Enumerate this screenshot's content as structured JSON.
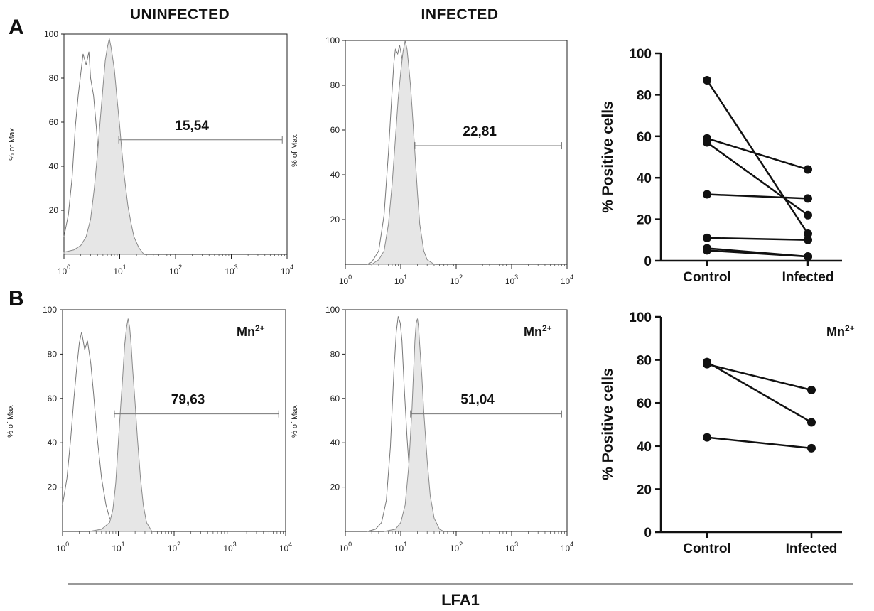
{
  "titles": {
    "uninfected": "UNINFECTED",
    "infected": "INFECTED",
    "panel_a": "A",
    "panel_b": "B",
    "x_axis": "LFA1",
    "mn_base": "Mn",
    "mn_sup": "2+"
  },
  "chart_data": [
    {
      "id": "A-uninfected",
      "type": "area",
      "panel": "A",
      "condition": "UNINFECTED",
      "ylabel": "% of Max",
      "ylim": [
        0,
        100
      ],
      "yticks": [
        20,
        40,
        60,
        80,
        100
      ],
      "xscale": "log",
      "xlim": [
        1,
        10000
      ],
      "xtick_base": "10",
      "xtick_exps": [
        "0",
        "1",
        "2",
        "3",
        "4"
      ],
      "gate": {
        "label": "15,54",
        "from": 9.6,
        "to": 8200,
        "y": 52
      },
      "series": [
        {
          "style": "outline",
          "points": [
            [
              1,
              8
            ],
            [
              1.2,
              18
            ],
            [
              1.4,
              35
            ],
            [
              1.6,
              58
            ],
            [
              1.8,
              72
            ],
            [
              2.0,
              82
            ],
            [
              2.2,
              91
            ],
            [
              2.5,
              86
            ],
            [
              2.8,
              92
            ],
            [
              3.0,
              80
            ],
            [
              3.4,
              72
            ],
            [
              3.8,
              58
            ],
            [
              4.3,
              40
            ],
            [
              5,
              26
            ],
            [
              6,
              14
            ],
            [
              7,
              7
            ],
            [
              8.5,
              3
            ],
            [
              10,
              1
            ],
            [
              12,
              0
            ]
          ]
        },
        {
          "style": "filled",
          "points": [
            [
              1,
              1
            ],
            [
              1.5,
              2
            ],
            [
              2,
              4
            ],
            [
              2.5,
              8
            ],
            [
              3,
              16
            ],
            [
              3.5,
              30
            ],
            [
              4,
              46
            ],
            [
              4.5,
              62
            ],
            [
              5,
              76
            ],
            [
              5.5,
              88
            ],
            [
              6,
              94
            ],
            [
              6.5,
              98
            ],
            [
              7,
              94
            ],
            [
              8,
              84
            ],
            [
              9,
              70
            ],
            [
              10,
              58
            ],
            [
              11,
              46
            ],
            [
              12,
              36
            ],
            [
              14,
              22
            ],
            [
              16,
              14
            ],
            [
              18,
              8
            ],
            [
              22,
              3
            ],
            [
              27,
              0
            ]
          ]
        }
      ]
    },
    {
      "id": "A-infected",
      "type": "area",
      "panel": "A",
      "condition": "INFECTED",
      "ylabel": "% of Max",
      "ylim": [
        0,
        100
      ],
      "yticks": [
        20,
        40,
        60,
        80,
        100
      ],
      "xscale": "log",
      "xlim": [
        1,
        10000
      ],
      "xtick_base": "10",
      "xtick_exps": [
        "0",
        "1",
        "2",
        "3",
        "4"
      ],
      "gate": {
        "label": "22,81",
        "from": 18,
        "to": 8000,
        "y": 53
      },
      "series": [
        {
          "style": "outline",
          "points": [
            [
              2.5,
              0
            ],
            [
              3,
              1
            ],
            [
              4,
              6
            ],
            [
              5,
              22
            ],
            [
              6,
              50
            ],
            [
              7,
              78
            ],
            [
              7.5,
              90
            ],
            [
              8,
              96
            ],
            [
              8.8,
              94
            ],
            [
              9.5,
              98
            ],
            [
              10.5,
              92
            ],
            [
              11,
              86
            ],
            [
              12,
              70
            ],
            [
              13,
              52
            ],
            [
              15,
              28
            ],
            [
              17,
              12
            ],
            [
              20,
              4
            ],
            [
              25,
              1
            ],
            [
              30,
              0
            ]
          ]
        },
        {
          "style": "filled",
          "points": [
            [
              3,
              0
            ],
            [
              4,
              2
            ],
            [
              5,
              6
            ],
            [
              6,
              18
            ],
            [
              7,
              36
            ],
            [
              8,
              56
            ],
            [
              9,
              74
            ],
            [
              10,
              86
            ],
            [
              11,
              95
            ],
            [
              12,
              100
            ],
            [
              13,
              96
            ],
            [
              14,
              88
            ],
            [
              15,
              80
            ],
            [
              16,
              70
            ],
            [
              18,
              50
            ],
            [
              20,
              32
            ],
            [
              22,
              18
            ],
            [
              26,
              6
            ],
            [
              30,
              2
            ],
            [
              40,
              0
            ]
          ]
        }
      ]
    },
    {
      "id": "B-uninfected",
      "type": "area",
      "panel": "B",
      "condition": "UNINFECTED",
      "annotation": "Mn2+",
      "ylabel": "% of Max",
      "ylim": [
        0,
        100
      ],
      "yticks": [
        20,
        40,
        60,
        80,
        100
      ],
      "xscale": "log",
      "xlim": [
        1,
        10000
      ],
      "xtick_base": "10",
      "xtick_exps": [
        "0",
        "1",
        "2",
        "3",
        "4"
      ],
      "gate": {
        "label": "79,63",
        "from": 8.5,
        "to": 7500,
        "y": 53
      },
      "series": [
        {
          "style": "outline",
          "points": [
            [
              1,
              12
            ],
            [
              1.2,
              24
            ],
            [
              1.4,
              42
            ],
            [
              1.6,
              60
            ],
            [
              1.8,
              74
            ],
            [
              2.0,
              85
            ],
            [
              2.2,
              90
            ],
            [
              2.5,
              82
            ],
            [
              2.8,
              86
            ],
            [
              3.2,
              76
            ],
            [
              3.6,
              62
            ],
            [
              4.2,
              42
            ],
            [
              5,
              24
            ],
            [
              6,
              12
            ],
            [
              7,
              6
            ],
            [
              8.5,
              2
            ],
            [
              10,
              1
            ],
            [
              13,
              0
            ]
          ]
        },
        {
          "style": "filled",
          "points": [
            [
              3,
              0
            ],
            [
              5,
              1
            ],
            [
              7,
              4
            ],
            [
              8,
              10
            ],
            [
              9,
              22
            ],
            [
              10,
              40
            ],
            [
              11,
              56
            ],
            [
              12,
              70
            ],
            [
              13,
              84
            ],
            [
              14,
              92
            ],
            [
              15,
              96
            ],
            [
              16,
              92
            ],
            [
              17,
              84
            ],
            [
              18,
              74
            ],
            [
              20,
              58
            ],
            [
              22,
              42
            ],
            [
              25,
              24
            ],
            [
              28,
              12
            ],
            [
              32,
              4
            ],
            [
              40,
              0
            ]
          ]
        }
      ]
    },
    {
      "id": "B-infected",
      "type": "area",
      "panel": "B",
      "condition": "INFECTED",
      "annotation": "Mn2+",
      "ylabel": "% of Max",
      "ylim": [
        0,
        100
      ],
      "yticks": [
        20,
        40,
        60,
        80,
        100
      ],
      "xscale": "log",
      "xlim": [
        1,
        10000
      ],
      "xtick_base": "10",
      "xtick_exps": [
        "0",
        "1",
        "2",
        "3",
        "4"
      ],
      "gate": {
        "label": "51,04",
        "from": 15,
        "to": 8000,
        "y": 53
      },
      "series": [
        {
          "style": "outline",
          "points": [
            [
              2.5,
              0
            ],
            [
              3.5,
              1
            ],
            [
              4.5,
              4
            ],
            [
              5.5,
              14
            ],
            [
              6.5,
              38
            ],
            [
              7.5,
              72
            ],
            [
              8.3,
              90
            ],
            [
              9,
              97
            ],
            [
              9.8,
              94
            ],
            [
              10.5,
              86
            ],
            [
              11.5,
              66
            ],
            [
              13,
              42
            ],
            [
              15,
              20
            ],
            [
              17,
              8
            ],
            [
              20,
              2
            ],
            [
              24,
              0
            ]
          ]
        },
        {
          "style": "filled",
          "points": [
            [
              5,
              0
            ],
            [
              8,
              1
            ],
            [
              10,
              4
            ],
            [
              12,
              12
            ],
            [
              14,
              30
            ],
            [
              16,
              56
            ],
            [
              17,
              72
            ],
            [
              18,
              86
            ],
            [
              19,
              94
            ],
            [
              20,
              96
            ],
            [
              21,
              92
            ],
            [
              22,
              84
            ],
            [
              24,
              70
            ],
            [
              26,
              54
            ],
            [
              30,
              32
            ],
            [
              34,
              16
            ],
            [
              40,
              6
            ],
            [
              50,
              1
            ],
            [
              60,
              0
            ]
          ]
        }
      ]
    },
    {
      "id": "A-positive",
      "type": "scatter",
      "panel": "A",
      "ylabel": "% Positive cells",
      "ylim": [
        0,
        100
      ],
      "yticks": [
        0,
        20,
        40,
        60,
        80,
        100
      ],
      "categories": [
        "Control",
        "Infected"
      ],
      "pairs": [
        [
          87,
          13
        ],
        [
          59,
          44
        ],
        [
          57,
          22
        ],
        [
          32,
          30
        ],
        [
          11,
          10
        ],
        [
          6,
          2
        ],
        [
          5,
          2
        ]
      ]
    },
    {
      "id": "B-positive",
      "type": "scatter",
      "panel": "B",
      "annotation": "Mn2+",
      "ylabel": "% Positive cells",
      "ylim": [
        0,
        100
      ],
      "yticks": [
        0,
        20,
        40,
        60,
        80,
        100
      ],
      "categories": [
        "Control",
        "Infected"
      ],
      "pairs": [
        [
          79,
          51
        ],
        [
          78,
          66
        ],
        [
          44,
          39
        ]
      ]
    }
  ]
}
